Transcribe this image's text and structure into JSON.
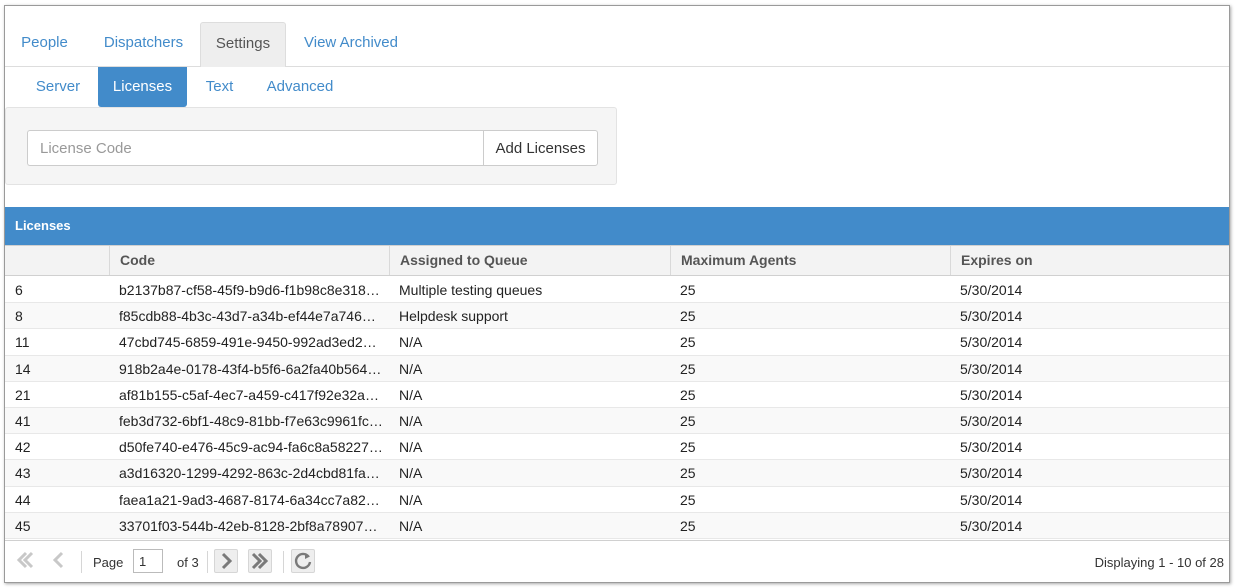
{
  "main_tabs": [
    {
      "label": "People"
    },
    {
      "label": "Dispatchers"
    },
    {
      "label": "Settings"
    },
    {
      "label": "View Archived"
    }
  ],
  "sub_tabs": [
    {
      "label": "Server"
    },
    {
      "label": "Licenses"
    },
    {
      "label": "Text"
    },
    {
      "label": "Advanced"
    }
  ],
  "active_main_tab": "Settings",
  "active_sub_tab": "Licenses",
  "license_form": {
    "placeholder": "License Code",
    "value": "",
    "add_label": "Add Licenses"
  },
  "grid": {
    "title": "Licenses",
    "columns": [
      "",
      "Code",
      "Assigned to Queue",
      "Maximum Agents",
      "Expires on"
    ],
    "rows": [
      {
        "id": "6",
        "code": "b2137b87-cf58-45f9-b9d6-f1b98c8e318…",
        "queue": "Multiple testing queues",
        "agents": "25",
        "expires": "5/30/2014"
      },
      {
        "id": "8",
        "code": "f85cdb88-4b3c-43d7-a34b-ef44e7a7462…",
        "queue": "Helpdesk support",
        "agents": "25",
        "expires": "5/30/2014"
      },
      {
        "id": "11",
        "code": "47cbd745-6859-491e-9450-992ad3ed2d…",
        "queue": "N/A",
        "agents": "25",
        "expires": "5/30/2014"
      },
      {
        "id": "14",
        "code": "918b2a4e-0178-43f4-b5f6-6a2fa40b564…",
        "queue": "N/A",
        "agents": "25",
        "expires": "5/30/2014"
      },
      {
        "id": "21",
        "code": "af81b155-c5af-4ec7-a459-c417f92e32a…",
        "queue": "N/A",
        "agents": "25",
        "expires": "5/30/2014"
      },
      {
        "id": "41",
        "code": "feb3d732-6bf1-48c9-81bb-f7e63c9961fc…",
        "queue": "N/A",
        "agents": "25",
        "expires": "5/30/2014"
      },
      {
        "id": "42",
        "code": "d50fe740-e476-45c9-ac94-fa6c8a58227…",
        "queue": "N/A",
        "agents": "25",
        "expires": "5/30/2014"
      },
      {
        "id": "43",
        "code": "a3d16320-1299-4292-863c-2d4cbd81fa…",
        "queue": "N/A",
        "agents": "25",
        "expires": "5/30/2014"
      },
      {
        "id": "44",
        "code": "faea1a21-9ad3-4687-8174-6a34cc7a82…",
        "queue": "N/A",
        "agents": "25",
        "expires": "5/30/2014"
      },
      {
        "id": "45",
        "code": "33701f03-544b-42eb-8128-2bf8a78907…",
        "queue": "N/A",
        "agents": "25",
        "expires": "5/30/2014"
      }
    ]
  },
  "pager": {
    "page_label": "Page",
    "page_value": "1",
    "of_label": "of 3",
    "display_text": "Displaying 1 - 10 of 28",
    "icons": [
      "first-page-icon",
      "prev-page-icon",
      "next-page-icon",
      "last-page-icon",
      "refresh-icon"
    ]
  },
  "colors": {
    "accent": "#428bca",
    "tab_active_bg": "#eeeeee",
    "header_bg": "#f3f3f3"
  }
}
